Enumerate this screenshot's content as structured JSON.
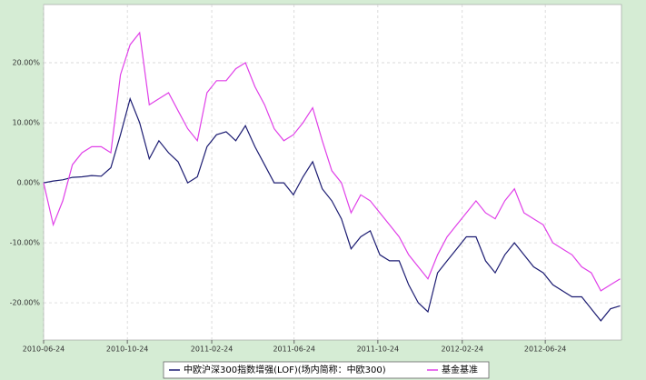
{
  "chart_data": {
    "type": "line",
    "x": [
      "2010-06-24",
      "2010-07-08",
      "2010-07-22",
      "2010-08-05",
      "2010-08-19",
      "2010-09-02",
      "2010-09-16",
      "2010-09-30",
      "2010-10-14",
      "2010-10-28",
      "2010-11-11",
      "2010-11-25",
      "2010-12-09",
      "2010-12-23",
      "2011-01-06",
      "2011-01-20",
      "2011-02-03",
      "2011-02-17",
      "2011-03-03",
      "2011-03-17",
      "2011-03-31",
      "2011-04-14",
      "2011-04-28",
      "2011-05-12",
      "2011-05-26",
      "2011-06-09",
      "2011-06-23",
      "2011-07-07",
      "2011-07-21",
      "2011-08-04",
      "2011-08-18",
      "2011-09-01",
      "2011-09-15",
      "2011-09-29",
      "2011-10-13",
      "2011-10-27",
      "2011-11-10",
      "2011-11-24",
      "2011-12-08",
      "2011-12-22",
      "2012-01-05",
      "2012-01-19",
      "2012-02-02",
      "2012-02-16",
      "2012-03-01",
      "2012-03-15",
      "2012-03-29",
      "2012-04-12",
      "2012-04-26",
      "2012-05-10",
      "2012-05-24",
      "2012-06-07",
      "2012-06-21",
      "2012-07-05",
      "2012-07-19",
      "2012-08-02",
      "2012-08-16",
      "2012-08-30",
      "2012-09-13",
      "2012-09-27",
      "2012-10-11"
    ],
    "series": [
      {
        "name": "中欧沪深300指数增强(LOF)(场内简称：中欧300)",
        "color": "#1c1c72",
        "values": [
          0,
          0.3,
          0.5,
          0.9,
          1,
          1.2,
          1.1,
          2.5,
          8,
          14,
          10,
          4,
          7,
          5,
          3.5,
          0,
          1,
          6,
          8,
          8.5,
          7,
          9.5,
          6,
          3,
          0,
          0,
          -2,
          1,
          3.5,
          -1,
          -3,
          -6,
          -11,
          -9,
          -8,
          -12,
          -13,
          -13,
          -17,
          -20,
          -21.5,
          -15,
          -13,
          -11,
          -9,
          -9,
          -13,
          -15,
          -12,
          -10,
          -12,
          -14,
          -15,
          -17,
          -18,
          -19,
          -19,
          -21,
          -23,
          -21,
          -20.5
        ]
      },
      {
        "name": "基金基准",
        "color": "#e040e8",
        "values": [
          0,
          -7,
          -3,
          3,
          5,
          6,
          6,
          5,
          18,
          23,
          25,
          13,
          14,
          15,
          12,
          9,
          7,
          15,
          17,
          17,
          19,
          20,
          16,
          13,
          9,
          7,
          8,
          10,
          12.5,
          7,
          2,
          0,
          -5,
          -2,
          -3,
          -5,
          -7,
          -9,
          -12,
          -14,
          -16,
          -12,
          -9,
          -7,
          -5,
          -3,
          -5,
          -6,
          -3,
          -1,
          -5,
          -6,
          -7,
          -10,
          -11,
          -12,
          -14,
          -15,
          -18,
          -17,
          -16
        ]
      }
    ],
    "xlim": [
      "2010-06-24",
      "2012-10-13"
    ],
    "xticks": [
      "2010-06-24",
      "2010-10-24",
      "2011-02-24",
      "2011-06-24",
      "2011-10-24",
      "2012-02-24",
      "2012-06-24"
    ],
    "ylim": [
      -26.2,
      29.7
    ],
    "yticks": [
      {
        "value": -20,
        "label": "-20.00%"
      },
      {
        "value": -10,
        "label": "-10.00%"
      },
      {
        "value": 0,
        "label": "0.00%"
      },
      {
        "value": 10,
        "label": "10.00%"
      },
      {
        "value": 20,
        "label": "20.00%"
      }
    ],
    "grid": true
  }
}
